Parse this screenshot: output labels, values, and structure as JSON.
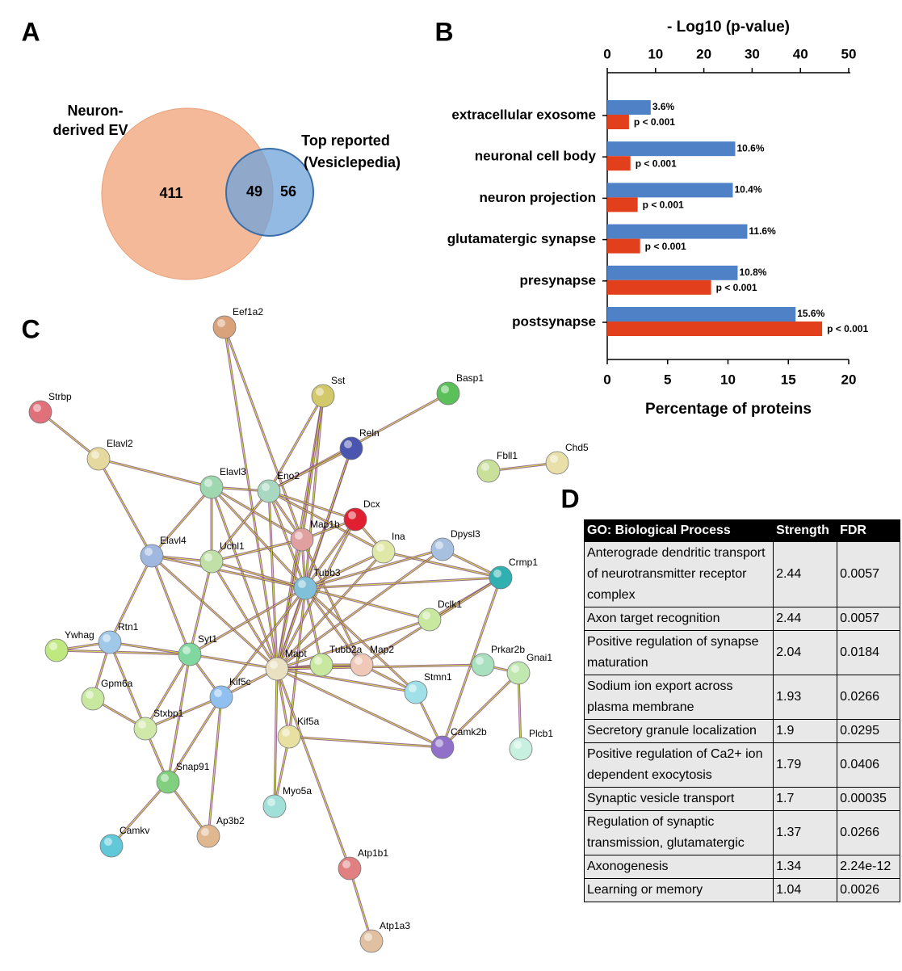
{
  "panels": {
    "a": "A",
    "b": "B",
    "c": "C",
    "d": "D"
  },
  "venn": {
    "sets": [
      {
        "name": [
          "Neuron-",
          "derived EV"
        ],
        "color": "#f4b998",
        "only": 411
      },
      {
        "name": [
          "Top reported",
          "(Vesiclepedia)"
        ],
        "color": "#6fa3d9",
        "only": 56
      }
    ],
    "overlap": 49
  },
  "chart_data": {
    "type": "bar",
    "orientation": "horizontal",
    "categories": [
      "extracellular exosome",
      "neuronal cell body",
      "neuron projection",
      "glutamatergic synapse",
      "presynapse",
      "postsynapse"
    ],
    "series": [
      {
        "color": "#4f81c7",
        "axis": "x",
        "values": [
          3.6,
          10.6,
          10.4,
          11.6,
          10.8,
          15.6
        ],
        "value_labels": [
          "3.6%",
          "10.6%",
          "10.4%",
          "11.6%",
          "10.8%",
          "15.6%"
        ]
      },
      {
        "color": "#e2401c",
        "axis": "x2",
        "values": [
          4.5,
          4.8,
          6.3,
          6.8,
          21.5,
          44.5
        ],
        "annotations": [
          "p < 0.001",
          "p < 0.001",
          "p < 0.001",
          "p < 0.001",
          "p < 0.001",
          "p < 0.001"
        ]
      }
    ],
    "xlabel": "Percentage of proteins",
    "xlim": [
      0,
      20
    ],
    "xticks": [
      0,
      5,
      10,
      15,
      20
    ],
    "x2label": "- Log10 (p-value)",
    "x2lim": [
      0,
      50
    ],
    "x2ticks": [
      0,
      10,
      20,
      30,
      40,
      50
    ]
  },
  "network": {
    "nodes": [
      "Eef1a2",
      "Strbp",
      "Sst",
      "Basp1",
      "Reln",
      "Elavl2",
      "Fbll1",
      "Chd5",
      "Elavl3",
      "Eno2",
      "Dcx",
      "Map1b",
      "Ina",
      "Dpysl3",
      "Elavl4",
      "Uchl1",
      "Crmp1",
      "Tubb3",
      "Dclk1",
      "Rtn1",
      "Ywhag",
      "Syt1",
      "Mapt",
      "Tubb2a",
      "Map2",
      "Prkar2b",
      "Gnai1",
      "Stmn1",
      "Gpm6a",
      "Kif5c",
      "Kif5a",
      "Stxbp1",
      "Camk2b",
      "Plcb1",
      "Snap91",
      "Myo5a",
      "Camkv",
      "Ap3b2",
      "Atp1b1",
      "Atp1a3"
    ]
  },
  "table": {
    "header": [
      "GO: Biological Process",
      "Strength",
      "FDR"
    ],
    "rows": [
      [
        "Anterograde dendritic transport of neurotransmitter receptor complex",
        2.44,
        0.0057
      ],
      [
        "Axon target recognition",
        2.44,
        0.0057
      ],
      [
        "Positive regulation of synapse maturation",
        2.04,
        0.0184
      ],
      [
        "Sodium ion export across plasma membrane",
        1.93,
        0.0266
      ],
      [
        "Secretory granule localization",
        1.9,
        0.0295
      ],
      [
        "Positive regulation of Ca2+ ion dependent exocytosis",
        1.79,
        0.0406
      ],
      [
        "Synaptic vesicle transport",
        1.7,
        0.00035
      ],
      [
        "Regulation of synaptic transmission, glutamatergic",
        1.37,
        0.0266
      ],
      [
        "Axonogenesis",
        1.34,
        2.24e-12
      ],
      [
        "Learning or memory",
        1.04,
        0.0026
      ]
    ]
  }
}
